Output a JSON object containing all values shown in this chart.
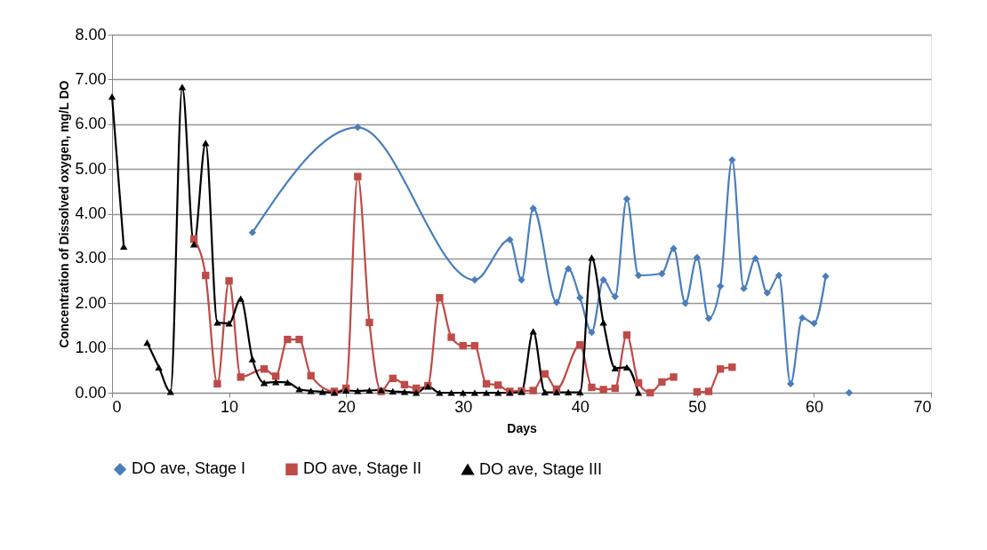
{
  "chart_data": {
    "type": "line",
    "xlabel": "Days",
    "ylabel": "Concentration of Dissolved oxygen, mg/L DO",
    "xlim": [
      0,
      70
    ],
    "xticks": [
      0,
      10,
      20,
      30,
      40,
      50,
      60,
      70
    ],
    "ylim": [
      0,
      8
    ],
    "yticks": [
      {
        "value": 0,
        "label": "0.00"
      },
      {
        "value": 1,
        "label": "1.00"
      },
      {
        "value": 2,
        "label": "2.00"
      },
      {
        "value": 3,
        "label": "3.00"
      },
      {
        "value": 4,
        "label": "4.00"
      },
      {
        "value": 5,
        "label": "5.00"
      },
      {
        "value": 6,
        "label": "6.00"
      },
      {
        "value": 7,
        "label": "7.00"
      },
      {
        "value": 8,
        "label": "8.00"
      }
    ],
    "grid": "y",
    "legend": "bottom",
    "line_style": "solid",
    "series": [
      {
        "name": "DO ave, Stage I",
        "color": "#4a7ebb",
        "marker": "diamond",
        "x": [
          12,
          21,
          31,
          34,
          35,
          36,
          38,
          39,
          40,
          41,
          42,
          43,
          44,
          45,
          47,
          48,
          49,
          50,
          51,
          52,
          53,
          54,
          55,
          56,
          57,
          58,
          59,
          60,
          61,
          62,
          63
        ],
        "values": [
          3.58,
          5.93,
          2.52,
          3.42,
          2.52,
          4.12,
          2.02,
          2.77,
          2.12,
          1.35,
          2.52,
          2.15,
          4.33,
          2.62,
          2.66,
          3.22,
          2.0,
          3.02,
          1.66,
          2.38,
          5.2,
          2.33,
          3.0,
          2.23,
          2.62,
          0.2,
          1.67,
          1.55,
          2.6,
          null,
          0
        ]
      },
      {
        "name": "DO ave, Stage II",
        "color": "#be4b48",
        "marker": "square",
        "x": [
          7,
          8,
          9,
          10,
          11,
          13,
          14,
          15,
          16,
          17,
          19,
          20,
          21,
          22,
          23,
          24,
          25,
          26,
          27,
          28,
          29,
          30,
          31,
          32,
          33,
          34,
          35,
          36,
          37,
          38,
          40,
          41,
          42,
          43,
          44,
          45,
          46,
          47,
          48,
          49,
          50,
          51,
          52,
          53
        ],
        "values": [
          3.43,
          2.62,
          0.2,
          2.5,
          0.35,
          0.53,
          0.37,
          1.19,
          1.19,
          0.38,
          0.03,
          0.1,
          4.83,
          1.57,
          0.03,
          0.32,
          0.18,
          0.1,
          0.16,
          2.12,
          1.24,
          1.05,
          1.05,
          0.2,
          0.17,
          0.03,
          0.04,
          0.05,
          0.42,
          0.08,
          1.07,
          0.12,
          0.07,
          0.1,
          1.29,
          0.22,
          0.0,
          0.24,
          0.35,
          null,
          0.02,
          0.03,
          0.53,
          0.57
        ]
      },
      {
        "name": "DO ave, Stage III",
        "color": "#000000",
        "marker": "triangle",
        "x": [
          0,
          1,
          2,
          3,
          4,
          5,
          6,
          7,
          8,
          9,
          10,
          11,
          12,
          13,
          14,
          15,
          16,
          17,
          18,
          19,
          20,
          21,
          22,
          23,
          24,
          25,
          26,
          27,
          28,
          29,
          30,
          31,
          32,
          33,
          34,
          35,
          36,
          37,
          38,
          39,
          40,
          41,
          42,
          43,
          44,
          45
        ],
        "values": [
          6.62,
          3.27,
          null,
          1.12,
          0.57,
          0.02,
          6.83,
          3.32,
          5.58,
          1.57,
          1.55,
          2.1,
          0.75,
          0.22,
          0.24,
          0.23,
          0.08,
          0.04,
          0.02,
          0.0,
          0.05,
          0.04,
          0.05,
          0.06,
          0.03,
          0.02,
          0.0,
          0.14,
          0.0,
          0.0,
          0.0,
          0.0,
          0.0,
          0.0,
          0.0,
          0.02,
          1.37,
          0.01,
          0.01,
          0.01,
          0.01,
          3.02,
          1.57,
          0.55,
          0.57,
          0.0
        ]
      }
    ]
  }
}
